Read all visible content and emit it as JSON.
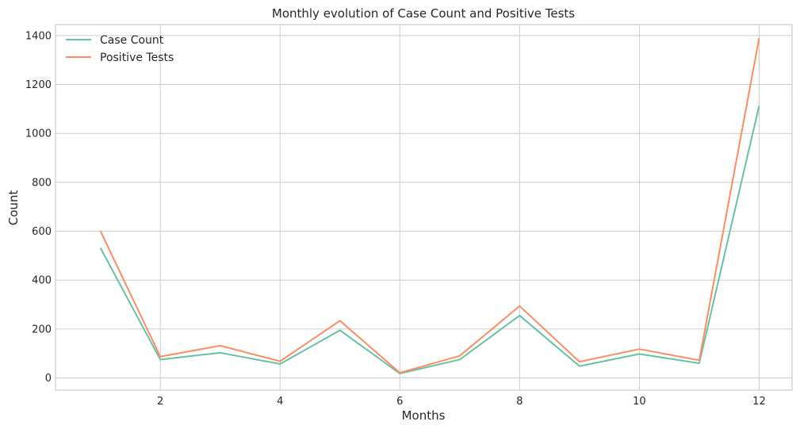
{
  "chart_data": {
    "type": "line",
    "title": "Monthly evolution of Case Count and Positive Tests",
    "xlabel": "Months",
    "ylabel": "Count",
    "x": [
      1,
      2,
      3,
      4,
      5,
      6,
      7,
      8,
      9,
      10,
      11,
      12
    ],
    "xlim": [
      0.25,
      12.55
    ],
    "ylim": [
      -50,
      1445
    ],
    "xticks": [
      2,
      4,
      6,
      8,
      10,
      12
    ],
    "yticks": [
      0,
      200,
      400,
      600,
      800,
      1000,
      1200,
      1400
    ],
    "grid": true,
    "legend_position": "top-left",
    "series": [
      {
        "name": "Case Count",
        "color": "#66c2a5",
        "values": [
          532,
          75,
          103,
          57,
          195,
          18,
          75,
          255,
          48,
          98,
          60,
          1113
        ]
      },
      {
        "name": "Positive Tests",
        "color": "#fc8d62",
        "values": [
          601,
          87,
          132,
          68,
          234,
          21,
          90,
          294,
          66,
          118,
          72,
          1390
        ]
      }
    ]
  }
}
